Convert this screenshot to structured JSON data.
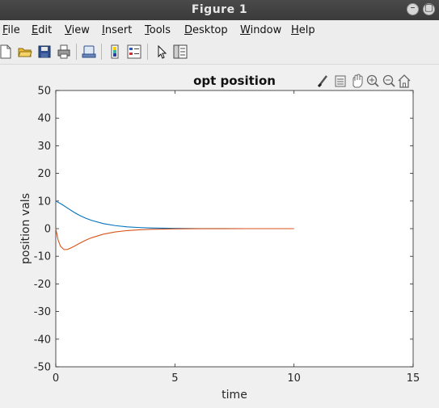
{
  "window": {
    "title": "Figure 1",
    "buttons": [
      "minimize",
      "maximize"
    ]
  },
  "menu": {
    "items": [
      {
        "label": "File",
        "mnemonic": "F",
        "rest": "ile"
      },
      {
        "label": "Edit",
        "mnemonic": "E",
        "rest": "dit"
      },
      {
        "label": "View",
        "mnemonic": "V",
        "rest": "iew"
      },
      {
        "label": "Insert",
        "mnemonic": "I",
        "rest": "nsert"
      },
      {
        "label": "Tools",
        "mnemonic": "T",
        "rest": "ools"
      },
      {
        "label": "Desktop",
        "mnemonic": "D",
        "rest": "esktop"
      },
      {
        "label": "Window",
        "mnemonic": "W",
        "rest": "indow"
      },
      {
        "label": "Help",
        "mnemonic": "H",
        "rest": "elp"
      }
    ]
  },
  "toolbar": {
    "icons": [
      "new-figure-icon",
      "open-file-icon",
      "save-icon",
      "print-icon",
      "link-icon",
      "colorbar-icon",
      "legend-icon",
      "pointer-icon",
      "property-inspector-icon"
    ]
  },
  "axes_toolbar": {
    "icons": [
      "brush-icon",
      "data-tips-icon",
      "pan-icon",
      "zoom-in-icon",
      "zoom-out-icon",
      "home-icon"
    ]
  },
  "chart_data": {
    "type": "line",
    "title": "opt position",
    "xlabel": "time",
    "ylabel": "position vals",
    "xlim": [
      0,
      15
    ],
    "ylim": [
      -50,
      50
    ],
    "xticks": [
      0,
      5,
      10,
      15
    ],
    "yticks": [
      -50,
      -40,
      -30,
      -20,
      -10,
      0,
      10,
      20,
      30,
      40,
      50
    ],
    "grid": false,
    "series": [
      {
        "color": "#0072BD",
        "x": [
          0,
          0.25,
          0.5,
          0.75,
          1,
          1.25,
          1.5,
          2,
          2.5,
          3,
          3.5,
          4,
          5,
          6,
          7,
          8,
          9,
          10
        ],
        "y": [
          10,
          8.8,
          7.4,
          6.0,
          4.8,
          3.8,
          3.0,
          1.8,
          1.1,
          0.65,
          0.4,
          0.24,
          0.09,
          0.03,
          0.01,
          0,
          0,
          0
        ]
      },
      {
        "color": "#D95319",
        "x": [
          0,
          0.1,
          0.2,
          0.35,
          0.5,
          0.75,
          1,
          1.25,
          1.5,
          2,
          2.5,
          3,
          3.5,
          4,
          5,
          6,
          7,
          8,
          9,
          10
        ],
        "y": [
          0,
          -4.2,
          -6.4,
          -7.6,
          -7.5,
          -6.5,
          -5.3,
          -4.2,
          -3.3,
          -2.0,
          -1.2,
          -0.7,
          -0.42,
          -0.25,
          -0.09,
          -0.03,
          -0.01,
          0,
          0,
          0
        ]
      }
    ]
  }
}
